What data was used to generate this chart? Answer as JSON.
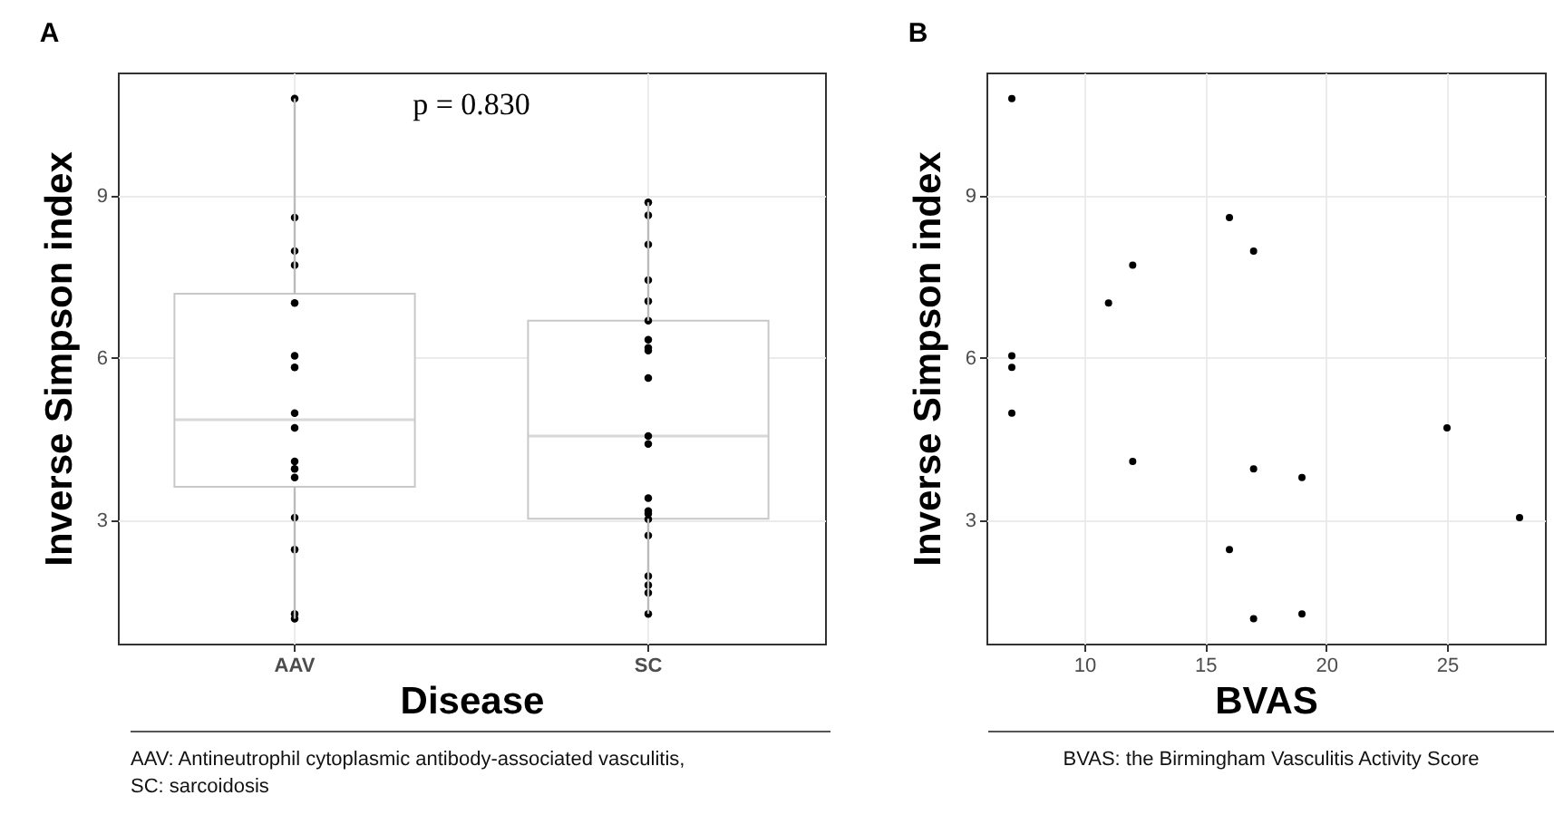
{
  "chart_data": [
    {
      "type": "box",
      "title": "A",
      "xlabel": "Disease",
      "ylabel": "Inverse Simpson index",
      "categories": [
        "AAV",
        "SC"
      ],
      "boxes": [
        {
          "low": 1.18,
          "q1": 3.62,
          "median": 4.86,
          "q3": 7.19,
          "high": 10.8
        },
        {
          "low": 1.27,
          "q1": 3.03,
          "median": 4.56,
          "q3": 6.69,
          "high": 8.88
        }
      ],
      "series": [
        {
          "type": "scatter",
          "color": "#000000",
          "x": [
            "AAV",
            "AAV",
            "AAV",
            "AAV",
            "AAV",
            "AAV",
            "AAV",
            "AAV",
            "AAV",
            "AAV",
            "AAV",
            "AAV",
            "AAV",
            "AAV",
            "AAV",
            "AAV"
          ],
          "values": [
            10.8,
            8.6,
            7.98,
            7.72,
            7.02,
            5.83,
            6.04,
            4.98,
            4.71,
            3.95,
            3.79,
            4.09,
            3.05,
            2.46,
            1.27,
            1.18
          ]
        },
        {
          "type": "scatter",
          "color": "#000000",
          "x": [
            "SC",
            "SC",
            "SC",
            "SC",
            "SC",
            "SC",
            "SC",
            "SC",
            "SC",
            "SC",
            "SC",
            "SC",
            "SC",
            "SC",
            "SC",
            "SC",
            "SC",
            "SC",
            "SC",
            "SC",
            "SC"
          ],
          "values": [
            8.88,
            8.64,
            8.1,
            7.44,
            7.05,
            6.69,
            6.19,
            6.14,
            6.34,
            5.63,
            4.41,
            4.56,
            3.17,
            3.02,
            3.41,
            3.12,
            2.72,
            1.97,
            1.66,
            1.8,
            1.27
          ]
        }
      ],
      "ylim": [
        0.72,
        11.28
      ],
      "yticks": [
        3,
        6,
        9
      ],
      "grid": true,
      "annotations": [
        "p = 0.830",
        "AAV: Antineutrophil cytoplasmic antibody-associated vasculitis,\nSC: sarcoidosis"
      ]
    },
    {
      "type": "scatter",
      "title": "B",
      "xlabel": "BVAS",
      "ylabel": "Inverse Simpson index",
      "marker": "circle",
      "color": "#000000",
      "x": [
        7,
        16,
        17,
        12,
        11,
        7,
        7,
        7,
        12,
        17,
        19,
        25,
        28,
        16,
        17,
        19
      ],
      "values": [
        10.8,
        8.6,
        7.98,
        7.72,
        7.02,
        6.04,
        5.83,
        4.98,
        4.09,
        3.95,
        3.79,
        4.71,
        3.05,
        2.46,
        1.18,
        1.27
      ],
      "xlim": [
        5.95,
        29.05
      ],
      "xticks": [
        10,
        15,
        20,
        25
      ],
      "ylim": [
        0.72,
        11.28
      ],
      "yticks": [
        3,
        6,
        9
      ],
      "grid": true,
      "annotations": [
        "BVAS: the Birmingham Vasculitis Activity Score"
      ]
    }
  ]
}
